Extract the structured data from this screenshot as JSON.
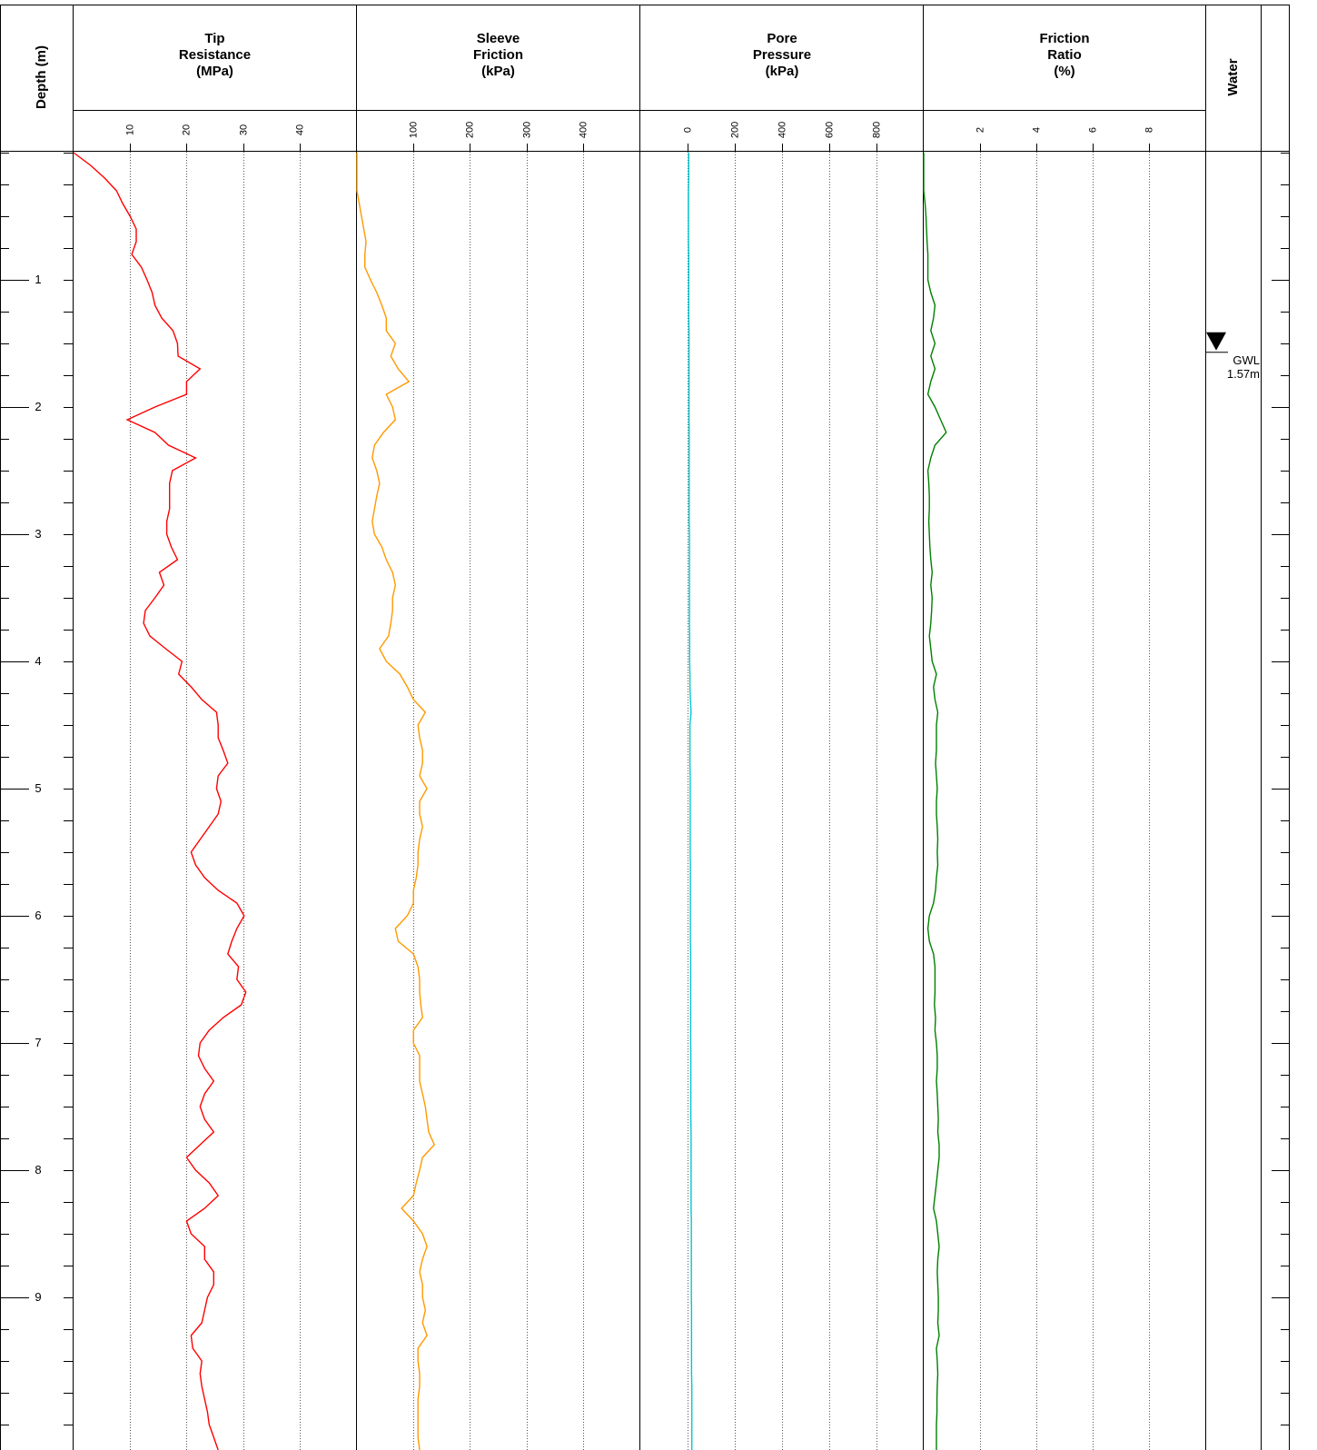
{
  "depth_axis": {
    "label": "Depth (m)",
    "ylim": [
      0,
      10.2
    ],
    "yticks": [
      1,
      2,
      3,
      4,
      5,
      6,
      7,
      8,
      9
    ],
    "minor_ytick_interval": 0.25,
    "depths": [
      0,
      0.1,
      0.2,
      0.3,
      0.4,
      0.5,
      0.6,
      0.7,
      0.8,
      0.9,
      1,
      1.1,
      1.2,
      1.3,
      1.4,
      1.5,
      1.6,
      1.7,
      1.8,
      1.9,
      2,
      2.1,
      2.2,
      2.3,
      2.4,
      2.5,
      2.6,
      2.7,
      2.8,
      2.9,
      3,
      3.1,
      3.2,
      3.3,
      3.4,
      3.5,
      3.6,
      3.7,
      3.8,
      3.9,
      4,
      4.1,
      4.2,
      4.3,
      4.4,
      4.5,
      4.6,
      4.7,
      4.8,
      4.9,
      5,
      5.1,
      5.2,
      5.3,
      5.4,
      5.5,
      5.6,
      5.7,
      5.8,
      5.9,
      6,
      6.1,
      6.2,
      6.3,
      6.4,
      6.5,
      6.6,
      6.7,
      6.8,
      6.9,
      7,
      7.1,
      7.2,
      7.3,
      7.4,
      7.5,
      7.6,
      7.7,
      7.8,
      7.9,
      8,
      8.1,
      8.2,
      8.3,
      8.4,
      8.5,
      8.6,
      8.7,
      8.8,
      8.9,
      9,
      9.1,
      9.2,
      9.3,
      9.4,
      9.5,
      9.6,
      9.7,
      9.8,
      9.9,
      10,
      10.1,
      10.2
    ]
  },
  "chart_data": [
    {
      "type": "line",
      "title_lines": [
        "Tip",
        "Resistance",
        "(MPa)"
      ],
      "color": "#ff0000",
      "xlim": [
        0,
        50
      ],
      "xticks": [
        10,
        20,
        30,
        40
      ],
      "grid": true,
      "values": [
        0,
        3,
        5.5,
        7.6,
        8.7,
        10,
        11.1,
        11.1,
        10.3,
        12,
        13,
        13.9,
        14.4,
        15.6,
        17.6,
        18.4,
        18.5,
        22.4,
        20,
        20,
        14.4,
        9.5,
        14.4,
        16.8,
        21.6,
        17.5,
        17,
        17,
        17,
        16.5,
        16.5,
        17.3,
        18.4,
        15.2,
        16,
        14.4,
        12.7,
        12.4,
        13.5,
        16.3,
        19.2,
        18.6,
        20.8,
        22.7,
        25.3,
        25.6,
        25.6,
        26.5,
        27.3,
        25.6,
        25.3,
        26.1,
        25.6,
        24,
        22.4,
        20.8,
        21.6,
        23.2,
        25.6,
        28.9,
        30.2,
        28.9,
        28,
        27.3,
        29.2,
        28.9,
        30.5,
        29.7,
        26.5,
        24,
        22.4,
        22.1,
        23.2,
        24.8,
        23.2,
        22.4,
        23.2,
        24.8,
        22.4,
        20,
        21.6,
        24,
        25.6,
        23.2,
        20,
        20.8,
        23.2,
        23.2,
        24.8,
        24.8,
        23.7,
        23.2,
        22.7,
        20.8,
        21.1,
        22.7,
        22.4,
        22.7,
        23.2,
        23.7,
        24,
        24.8,
        25.6
      ]
    },
    {
      "type": "line",
      "title_lines": [
        "Sleeve",
        "Friction",
        "(kPa)"
      ],
      "color": "#ff9900",
      "xlim": [
        0,
        500
      ],
      "xticks": [
        100,
        200,
        300,
        400
      ],
      "grid": true,
      "values": [
        0,
        0,
        0,
        0,
        4,
        8,
        12,
        16,
        14,
        14,
        24,
        35,
        44,
        52,
        52,
        68,
        60,
        73,
        92,
        52,
        63,
        68,
        47,
        31,
        27,
        35,
        40,
        35,
        31,
        27,
        31,
        44,
        52,
        63,
        68,
        63,
        63,
        60,
        56,
        40,
        52,
        76,
        89,
        100,
        121,
        108,
        111,
        116,
        116,
        111,
        124,
        111,
        111,
        116,
        111,
        108,
        108,
        105,
        100,
        100,
        89,
        68,
        73,
        100,
        108,
        111,
        111,
        113,
        116,
        100,
        100,
        111,
        111,
        111,
        116,
        121,
        124,
        127,
        137,
        116,
        111,
        105,
        100,
        79,
        100,
        116,
        124,
        116,
        111,
        116,
        116,
        121,
        116,
        124,
        108,
        108,
        111,
        111,
        108,
        108,
        108,
        108,
        111
      ]
    },
    {
      "type": "line",
      "title_lines": [
        "Pore",
        "Pressure",
        "(kPa)"
      ],
      "color": "#00c8d2",
      "xlim": [
        -200,
        1000
      ],
      "xticks": [
        0,
        200,
        400,
        600,
        800
      ],
      "grid": true,
      "values": [
        5,
        5,
        5,
        4,
        4,
        4,
        4,
        4,
        5,
        5,
        5,
        5,
        5,
        5,
        6,
        6,
        6,
        6,
        6,
        6,
        6,
        6,
        7,
        7,
        7,
        7,
        7,
        7,
        7,
        7,
        8,
        8,
        8,
        8,
        8,
        8,
        8,
        8,
        9,
        9,
        9,
        10,
        10,
        12,
        15,
        10,
        10,
        10,
        10,
        11,
        11,
        11,
        11,
        11,
        11,
        11,
        12,
        12,
        12,
        12,
        12,
        12,
        12,
        13,
        13,
        13,
        13,
        13,
        13,
        13,
        13,
        14,
        14,
        14,
        14,
        14,
        14,
        15,
        15,
        15,
        15,
        15,
        15,
        15,
        16,
        16,
        16,
        16,
        16,
        16,
        16,
        17,
        17,
        17,
        17,
        17,
        17,
        18,
        18,
        18,
        18,
        18,
        18
      ]
    },
    {
      "type": "line",
      "title_lines": [
        "Friction",
        "Ratio",
        "(%)"
      ],
      "color": "#008000",
      "xlim": [
        0,
        10
      ],
      "xticks": [
        2,
        4,
        6,
        8
      ],
      "grid": true,
      "values": [
        0,
        0,
        0,
        0,
        0.05,
        0.08,
        0.1,
        0.12,
        0.15,
        0.15,
        0.15,
        0.25,
        0.4,
        0.35,
        0.25,
        0.4,
        0.25,
        0.4,
        0.25,
        0.15,
        0.4,
        0.6,
        0.8,
        0.4,
        0.25,
        0.15,
        0.18,
        0.2,
        0.2,
        0.18,
        0.2,
        0.22,
        0.25,
        0.3,
        0.25,
        0.3,
        0.28,
        0.25,
        0.2,
        0.25,
        0.3,
        0.45,
        0.35,
        0.4,
        0.5,
        0.45,
        0.45,
        0.45,
        0.42,
        0.45,
        0.48,
        0.45,
        0.45,
        0.48,
        0.5,
        0.48,
        0.5,
        0.45,
        0.42,
        0.35,
        0.2,
        0.15,
        0.2,
        0.35,
        0.4,
        0.4,
        0.4,
        0.38,
        0.42,
        0.4,
        0.45,
        0.48,
        0.48,
        0.45,
        0.48,
        0.5,
        0.52,
        0.5,
        0.55,
        0.55,
        0.5,
        0.45,
        0.4,
        0.35,
        0.45,
        0.5,
        0.55,
        0.5,
        0.48,
        0.5,
        0.52,
        0.52,
        0.5,
        0.55,
        0.45,
        0.48,
        0.5,
        0.48,
        0.47,
        0.47,
        0.45,
        0.45,
        0.45
      ]
    }
  ],
  "water": {
    "label": "Water",
    "gwl_label": "GWL",
    "gwl_depth": 1.57,
    "gwl_depth_label": "1.57m"
  }
}
